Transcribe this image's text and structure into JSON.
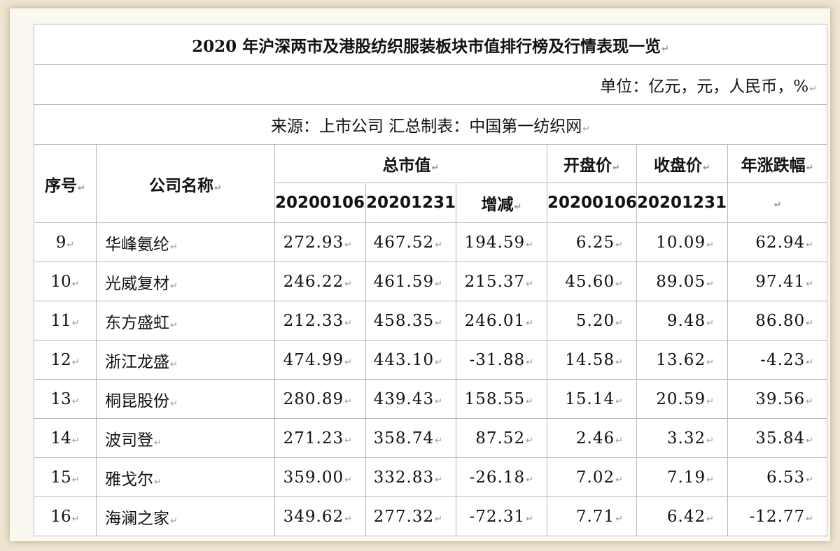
{
  "title": "2020 年沪深两市及港股纺织服装板块市值排行榜及行情表现一览",
  "unit": "单位：亿元，元，人民币，%",
  "source": "来源：上市公司 汇总制表：中国第一纺织网",
  "headers": {
    "index": "序号",
    "company": "公司名称",
    "market_cap": "总市值",
    "open_price": "开盘价",
    "close_price": "收盘价",
    "annual_change": "年涨跌幅",
    "date_start": "20200106",
    "date_end": "20201231",
    "change": "增减",
    "date_open": "20200106",
    "date_close": "20201231"
  },
  "rows": [
    {
      "idx": "9",
      "name": "华峰氨纶",
      "cap_start": "272.93",
      "cap_end": "467.52",
      "diff": "194.59",
      "open": "6.25",
      "close": "10.09",
      "pct": "62.94"
    },
    {
      "idx": "10",
      "name": "光威复材",
      "cap_start": "246.22",
      "cap_end": "461.59",
      "diff": "215.37",
      "open": "45.60",
      "close": "89.05",
      "pct": "97.41"
    },
    {
      "idx": "11",
      "name": "东方盛虹",
      "cap_start": "212.33",
      "cap_end": "458.35",
      "diff": "246.01",
      "open": "5.20",
      "close": "9.48",
      "pct": "86.80"
    },
    {
      "idx": "12",
      "name": "浙江龙盛",
      "cap_start": "474.99",
      "cap_end": "443.10",
      "diff": "-31.88",
      "open": "14.58",
      "close": "13.62",
      "pct": "-4.23"
    },
    {
      "idx": "13",
      "name": "桐昆股份",
      "cap_start": "280.89",
      "cap_end": "439.43",
      "diff": "158.55",
      "open": "15.14",
      "close": "20.59",
      "pct": "39.56"
    },
    {
      "idx": "14",
      "name": "波司登",
      "cap_start": "271.23",
      "cap_end": "358.74",
      "diff": "87.52",
      "open": "2.46",
      "close": "3.32",
      "pct": "35.84"
    },
    {
      "idx": "15",
      "name": "雅戈尔",
      "cap_start": "359.00",
      "cap_end": "332.83",
      "diff": "-26.18",
      "open": "7.02",
      "close": "7.19",
      "pct": "6.53"
    },
    {
      "idx": "16",
      "name": "海澜之家",
      "cap_start": "349.62",
      "cap_end": "277.32",
      "diff": "-72.31",
      "open": "7.71",
      "close": "6.42",
      "pct": "-12.77"
    }
  ],
  "colors": {
    "background": "#eee4cf",
    "frame": "#fbf8f0",
    "grid": "#b9b9b9"
  }
}
